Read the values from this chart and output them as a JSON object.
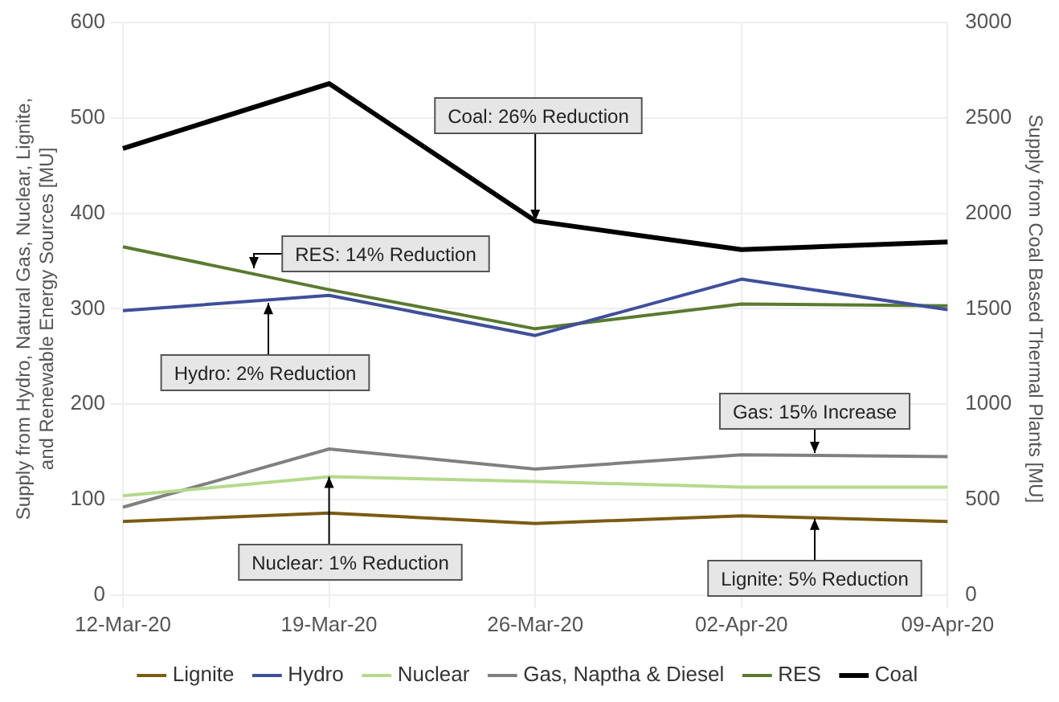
{
  "chart_data": {
    "type": "line",
    "ylabel": "Supply from Hydro, Natural Gas, Nuclear, Lignite,\nand Renewable Energy Sources [MU]",
    "y2label": "Supply from Coal Based Thermal Plants [MU]",
    "categories": [
      "12-Mar-20",
      "19-Mar-20",
      "26-Mar-20",
      "02-Apr-20",
      "09-Apr-20"
    ],
    "series": [
      {
        "name": "Lignite",
        "color": "#7a5c12",
        "values": [
          77,
          86,
          75,
          83,
          77
        ]
      },
      {
        "name": "Hydro",
        "color": "#3f4f9a",
        "values": [
          298,
          314,
          272,
          331,
          299
        ]
      },
      {
        "name": "Nuclear",
        "color": "#b5d98c",
        "values": [
          104,
          124,
          119,
          113,
          113
        ]
      },
      {
        "name": "Gas, Naptha & Diesel",
        "color": "#808080",
        "values": [
          92,
          153,
          132,
          147,
          145
        ]
      },
      {
        "name": "RES",
        "color": "#5a7a30",
        "values": [
          365,
          320,
          279,
          305,
          303
        ]
      },
      {
        "name": "Coal",
        "color": "#000000",
        "axis": "y2",
        "values": [
          2340,
          2680,
          1960,
          1810,
          1850
        ]
      }
    ],
    "ylim": [
      0,
      600
    ],
    "yticks": [
      0,
      100,
      200,
      300,
      400,
      500,
      600
    ],
    "y2lim": [
      0,
      3000
    ],
    "y2ticks": [
      0,
      500,
      1000,
      1500,
      2000,
      2500,
      3000
    ],
    "grid": true,
    "legend": "bottom",
    "marker": "none",
    "line_style": "solid",
    "annotations": [
      {
        "text": "Coal: 26% Reduction",
        "x": "26-Mar-20",
        "y": 392
      },
      "RES: 14% Reduction",
      {
        "text": "Hydro: 2% Reduction",
        "y": 306
      },
      {
        "text": "Nuclear: 1% Reduction",
        "x": "19-Mar-20",
        "y": 124
      },
      "Gas: 15% Increase",
      {
        "text": "Lignite: 5% Reduction",
        "y": 80
      }
    ]
  }
}
